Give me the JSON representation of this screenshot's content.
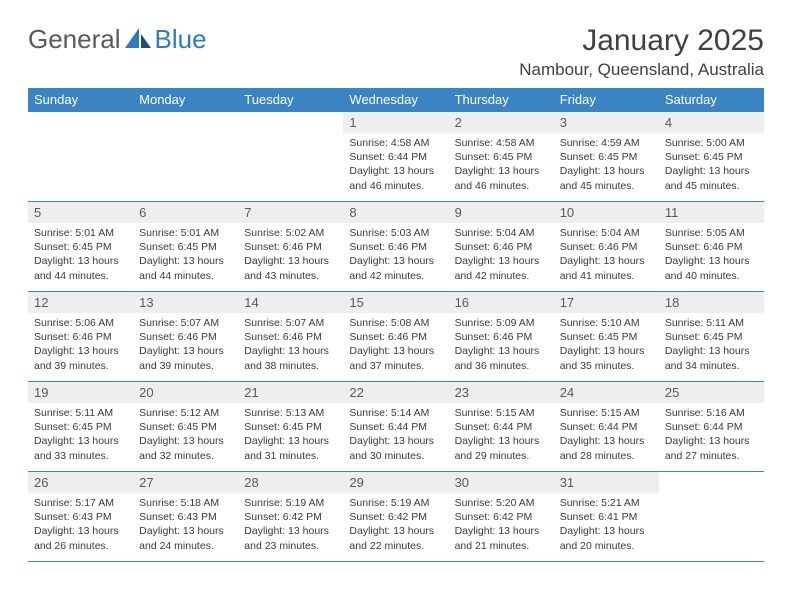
{
  "logo": {
    "word1": "General",
    "word2": "Blue"
  },
  "title": "January 2025",
  "location": "Nambour, Queensland, Australia",
  "colors": {
    "header_bg": "#3b84c4",
    "header_text": "#ffffff",
    "daynum_bg": "#eceef0",
    "text": "#3a3a3a",
    "border": "#3b84c4",
    "logo_gray": "#5a5a5a",
    "logo_blue": "#2f7bbf"
  },
  "weekdays": [
    "Sunday",
    "Monday",
    "Tuesday",
    "Wednesday",
    "Thursday",
    "Friday",
    "Saturday"
  ],
  "weeks": [
    [
      null,
      null,
      null,
      {
        "n": "1",
        "sr": "Sunrise: 4:58 AM",
        "ss": "Sunset: 6:44 PM",
        "dl": "Daylight: 13 hours and 46 minutes."
      },
      {
        "n": "2",
        "sr": "Sunrise: 4:58 AM",
        "ss": "Sunset: 6:45 PM",
        "dl": "Daylight: 13 hours and 46 minutes."
      },
      {
        "n": "3",
        "sr": "Sunrise: 4:59 AM",
        "ss": "Sunset: 6:45 PM",
        "dl": "Daylight: 13 hours and 45 minutes."
      },
      {
        "n": "4",
        "sr": "Sunrise: 5:00 AM",
        "ss": "Sunset: 6:45 PM",
        "dl": "Daylight: 13 hours and 45 minutes."
      }
    ],
    [
      {
        "n": "5",
        "sr": "Sunrise: 5:01 AM",
        "ss": "Sunset: 6:45 PM",
        "dl": "Daylight: 13 hours and 44 minutes."
      },
      {
        "n": "6",
        "sr": "Sunrise: 5:01 AM",
        "ss": "Sunset: 6:45 PM",
        "dl": "Daylight: 13 hours and 44 minutes."
      },
      {
        "n": "7",
        "sr": "Sunrise: 5:02 AM",
        "ss": "Sunset: 6:46 PM",
        "dl": "Daylight: 13 hours and 43 minutes."
      },
      {
        "n": "8",
        "sr": "Sunrise: 5:03 AM",
        "ss": "Sunset: 6:46 PM",
        "dl": "Daylight: 13 hours and 42 minutes."
      },
      {
        "n": "9",
        "sr": "Sunrise: 5:04 AM",
        "ss": "Sunset: 6:46 PM",
        "dl": "Daylight: 13 hours and 42 minutes."
      },
      {
        "n": "10",
        "sr": "Sunrise: 5:04 AM",
        "ss": "Sunset: 6:46 PM",
        "dl": "Daylight: 13 hours and 41 minutes."
      },
      {
        "n": "11",
        "sr": "Sunrise: 5:05 AM",
        "ss": "Sunset: 6:46 PM",
        "dl": "Daylight: 13 hours and 40 minutes."
      }
    ],
    [
      {
        "n": "12",
        "sr": "Sunrise: 5:06 AM",
        "ss": "Sunset: 6:46 PM",
        "dl": "Daylight: 13 hours and 39 minutes."
      },
      {
        "n": "13",
        "sr": "Sunrise: 5:07 AM",
        "ss": "Sunset: 6:46 PM",
        "dl": "Daylight: 13 hours and 39 minutes."
      },
      {
        "n": "14",
        "sr": "Sunrise: 5:07 AM",
        "ss": "Sunset: 6:46 PM",
        "dl": "Daylight: 13 hours and 38 minutes."
      },
      {
        "n": "15",
        "sr": "Sunrise: 5:08 AM",
        "ss": "Sunset: 6:46 PM",
        "dl": "Daylight: 13 hours and 37 minutes."
      },
      {
        "n": "16",
        "sr": "Sunrise: 5:09 AM",
        "ss": "Sunset: 6:46 PM",
        "dl": "Daylight: 13 hours and 36 minutes."
      },
      {
        "n": "17",
        "sr": "Sunrise: 5:10 AM",
        "ss": "Sunset: 6:45 PM",
        "dl": "Daylight: 13 hours and 35 minutes."
      },
      {
        "n": "18",
        "sr": "Sunrise: 5:11 AM",
        "ss": "Sunset: 6:45 PM",
        "dl": "Daylight: 13 hours and 34 minutes."
      }
    ],
    [
      {
        "n": "19",
        "sr": "Sunrise: 5:11 AM",
        "ss": "Sunset: 6:45 PM",
        "dl": "Daylight: 13 hours and 33 minutes."
      },
      {
        "n": "20",
        "sr": "Sunrise: 5:12 AM",
        "ss": "Sunset: 6:45 PM",
        "dl": "Daylight: 13 hours and 32 minutes."
      },
      {
        "n": "21",
        "sr": "Sunrise: 5:13 AM",
        "ss": "Sunset: 6:45 PM",
        "dl": "Daylight: 13 hours and 31 minutes."
      },
      {
        "n": "22",
        "sr": "Sunrise: 5:14 AM",
        "ss": "Sunset: 6:44 PM",
        "dl": "Daylight: 13 hours and 30 minutes."
      },
      {
        "n": "23",
        "sr": "Sunrise: 5:15 AM",
        "ss": "Sunset: 6:44 PM",
        "dl": "Daylight: 13 hours and 29 minutes."
      },
      {
        "n": "24",
        "sr": "Sunrise: 5:15 AM",
        "ss": "Sunset: 6:44 PM",
        "dl": "Daylight: 13 hours and 28 minutes."
      },
      {
        "n": "25",
        "sr": "Sunrise: 5:16 AM",
        "ss": "Sunset: 6:44 PM",
        "dl": "Daylight: 13 hours and 27 minutes."
      }
    ],
    [
      {
        "n": "26",
        "sr": "Sunrise: 5:17 AM",
        "ss": "Sunset: 6:43 PM",
        "dl": "Daylight: 13 hours and 26 minutes."
      },
      {
        "n": "27",
        "sr": "Sunrise: 5:18 AM",
        "ss": "Sunset: 6:43 PM",
        "dl": "Daylight: 13 hours and 24 minutes."
      },
      {
        "n": "28",
        "sr": "Sunrise: 5:19 AM",
        "ss": "Sunset: 6:42 PM",
        "dl": "Daylight: 13 hours and 23 minutes."
      },
      {
        "n": "29",
        "sr": "Sunrise: 5:19 AM",
        "ss": "Sunset: 6:42 PM",
        "dl": "Daylight: 13 hours and 22 minutes."
      },
      {
        "n": "30",
        "sr": "Sunrise: 5:20 AM",
        "ss": "Sunset: 6:42 PM",
        "dl": "Daylight: 13 hours and 21 minutes."
      },
      {
        "n": "31",
        "sr": "Sunrise: 5:21 AM",
        "ss": "Sunset: 6:41 PM",
        "dl": "Daylight: 13 hours and 20 minutes."
      },
      null
    ]
  ]
}
